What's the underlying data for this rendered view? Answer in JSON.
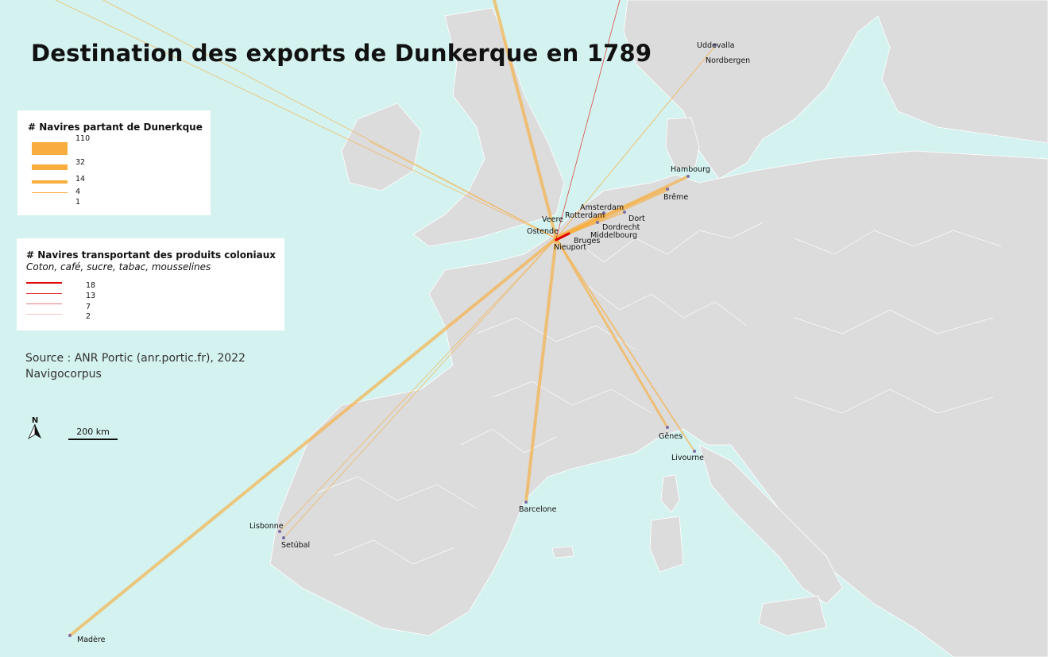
{
  "title": "Destination des exports de Dunkerque en 1789",
  "legend_ships": {
    "title": "# Navires partant de Dunerkque",
    "values": [
      "110",
      "32",
      "14",
      "4",
      "1"
    ],
    "color": "#f8ad3e"
  },
  "legend_colonial": {
    "title": "# Navires transportant des produits coloniaux",
    "subtitle": "Coton, café, sucre, tabac, mousselines",
    "values": [
      "18",
      "13",
      "7",
      "2"
    ],
    "color": "#e00000"
  },
  "source": {
    "line1": "Source : ANR Portic (anr.portic.fr), 2022",
    "line2": "Navigocorpus"
  },
  "scale": {
    "label": "200 km"
  },
  "north": {
    "label": "N"
  },
  "colors": {
    "sea": "#d4f2ef",
    "land": "#dcdcdc",
    "border": "#ffffff",
    "flow": "#f8ad3e",
    "colonial": "#e00000",
    "port": "#7a6fa8"
  },
  "ports": [
    "Uddevalla",
    "Nordbergen",
    "Hambourg",
    "Brême",
    "Amsterdam",
    "Rotterdam",
    "Dort",
    "Dordrecht",
    "Middelbourg",
    "Veere",
    "Ostende",
    "Bruges",
    "Nieuport",
    "Gênes",
    "Livourne",
    "Barcelone",
    "Lisbonne",
    "Setúbal",
    "Madère"
  ]
}
